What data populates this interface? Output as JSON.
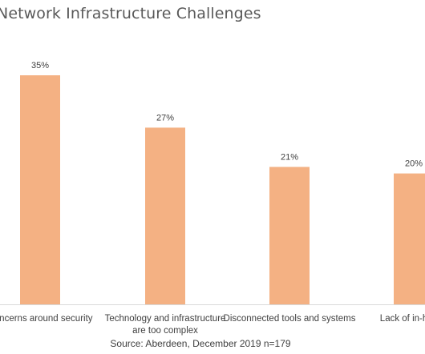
{
  "chart_data": {
    "type": "bar",
    "title": "Network Infrastructure Challenges",
    "categories": [
      [
        "Concerns around security"
      ],
      [
        "Technology and infrastructure",
        "are too complex"
      ],
      [
        "Disconnected tools and systems"
      ],
      [
        "Lack of in-house"
      ]
    ],
    "values": [
      35,
      27,
      21,
      20
    ],
    "data_labels": [
      "35%",
      "27%",
      "21%",
      "20%"
    ],
    "ylim": [
      0,
      40
    ],
    "grid": false,
    "bar_color": "#F4B183",
    "axis_color": "#D9D9D9"
  },
  "source": "Source: Aberdeen, December 2019  n=179"
}
